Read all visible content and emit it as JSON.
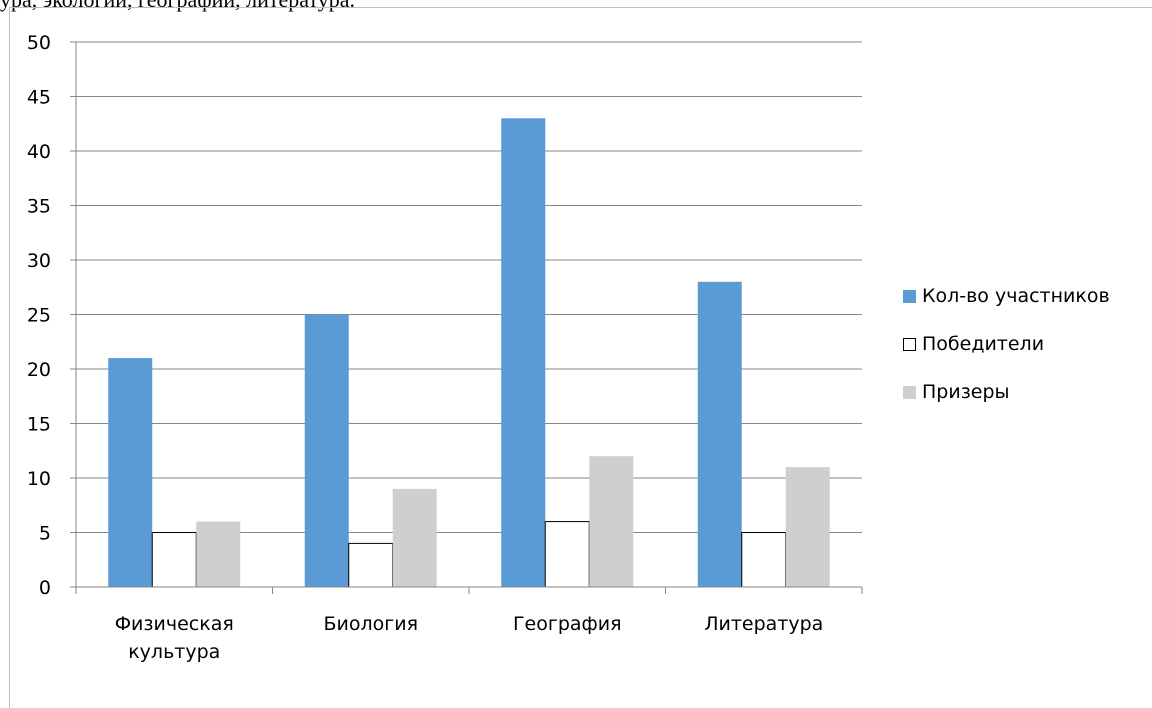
{
  "caption": "ура, экологии, географии, литература.",
  "colors": {
    "participants": "#5b9bd5",
    "winners": "#ffffff",
    "prizewinners": "#d0cece",
    "grid": "#868686",
    "axis": "#868686"
  },
  "chart_data": {
    "type": "bar",
    "title": "",
    "xlabel": "",
    "ylabel": "",
    "categories": [
      [
        "Физическая",
        "культура"
      ],
      [
        "Биология"
      ],
      [
        "География"
      ],
      [
        "Литература"
      ]
    ],
    "series": [
      {
        "name": "Кол-во участников",
        "values": [
          21,
          25,
          43,
          28
        ]
      },
      {
        "name": "Победители",
        "values": [
          5,
          4,
          6,
          5
        ]
      },
      {
        "name": "Призеры",
        "values": [
          6,
          9,
          12,
          11
        ]
      }
    ],
    "ylim": [
      0,
      50
    ],
    "yticks": [
      0,
      5,
      10,
      15,
      20,
      25,
      30,
      35,
      40,
      45,
      50
    ],
    "grid": true,
    "legend": "right"
  }
}
